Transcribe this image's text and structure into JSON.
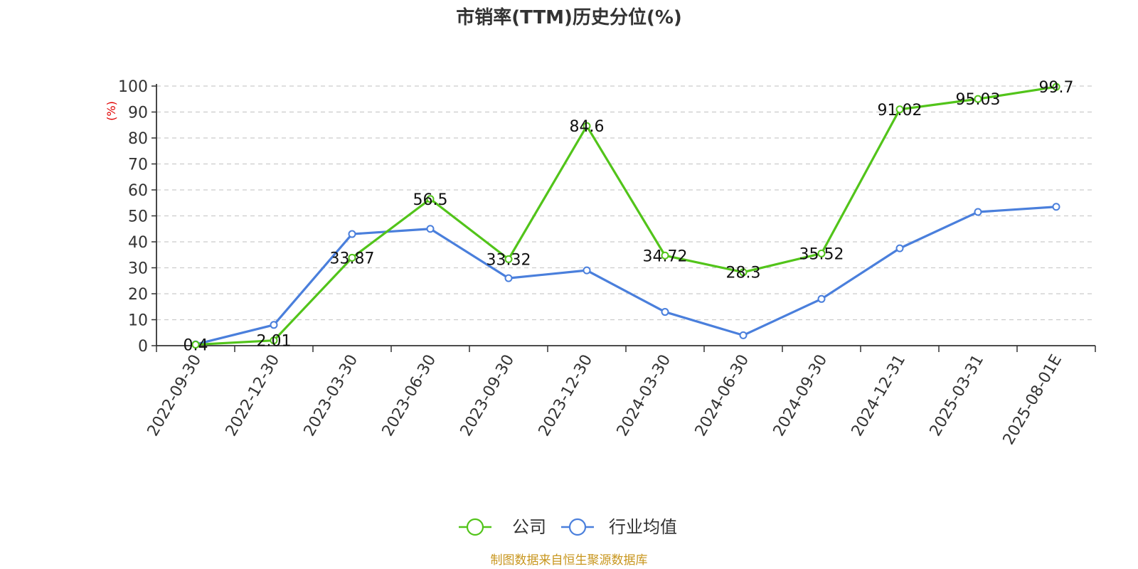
{
  "chart_data": {
    "type": "line",
    "title": "市销率(TTM)历史分位(%)",
    "ylabel": "(%)",
    "xlabel": "",
    "categories": [
      "2022-09-30",
      "2022-12-30",
      "2023-03-30",
      "2023-06-30",
      "2023-09-30",
      "2023-12-30",
      "2024-03-30",
      "2024-06-30",
      "2024-09-30",
      "2024-12-31",
      "2025-03-31",
      "2025-08-01E"
    ],
    "ylim": [
      0,
      100
    ],
    "yticks": [
      0,
      10,
      20,
      30,
      40,
      50,
      60,
      70,
      80,
      90,
      100
    ],
    "grid": true,
    "legend_position": "bottom",
    "series": [
      {
        "name": "公司",
        "color": "#52c41a",
        "show_labels": true,
        "values": [
          0.4,
          2.01,
          33.87,
          56.5,
          33.32,
          84.6,
          34.72,
          28.3,
          35.52,
          91.02,
          95.03,
          99.7
        ]
      },
      {
        "name": "行业均值",
        "color": "#4a7fdc",
        "show_labels": false,
        "values": [
          0.5,
          8,
          43,
          45,
          26,
          29,
          13,
          4,
          18,
          37.5,
          51.5,
          53.5
        ]
      }
    ]
  },
  "source": "制图数据来自恒生聚源数据库"
}
